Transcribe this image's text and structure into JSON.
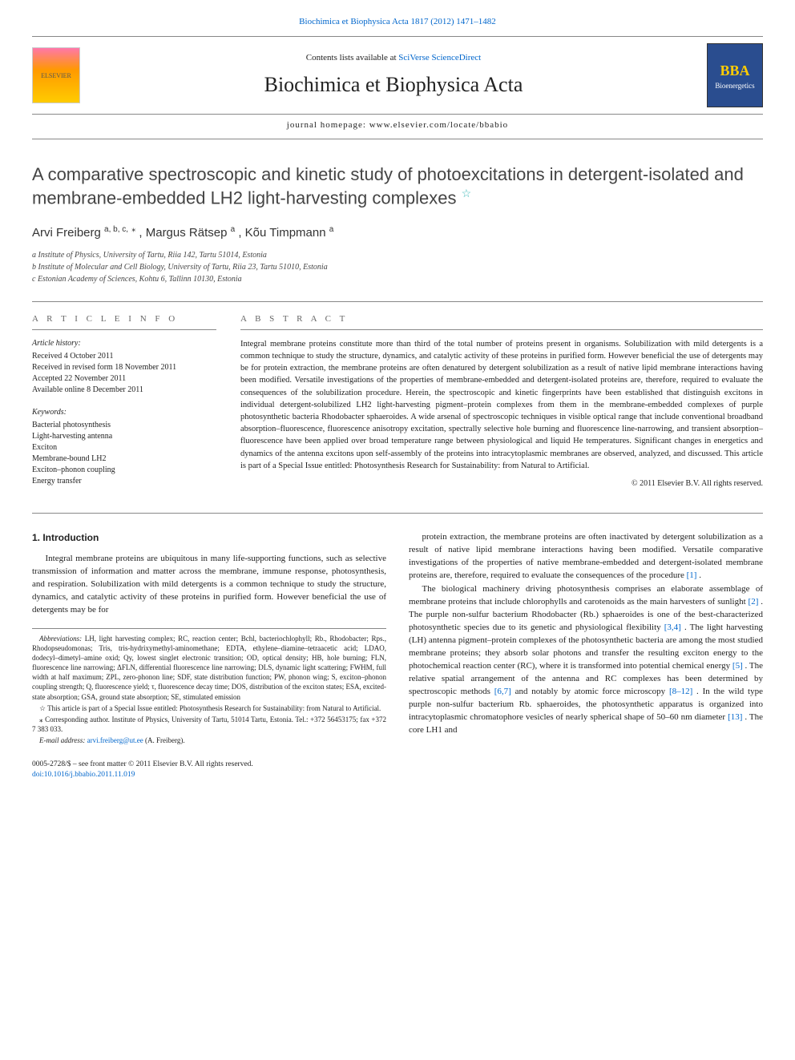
{
  "header": {
    "top_link_prefix": "Biochimica et Biophysica Acta 1817 (2012) 1471–1482",
    "contents_line_prefix": "Contents lists available at ",
    "contents_link": "SciVerse ScienceDirect",
    "journal_name": "Biochimica et Biophysica Acta",
    "homepage_prefix": "journal homepage: ",
    "homepage_url": "www.elsevier.com/locate/bbabio",
    "elsevier_label": "ELSEVIER",
    "bba_label_top": "BBA",
    "bba_label_bottom": "Bioenergetics"
  },
  "article": {
    "title": "A comparative spectroscopic and kinetic study of photoexcitations in detergent-isolated and membrane-embedded LH2 light-harvesting complexes",
    "title_star": "☆",
    "authors_html": "Arvi Freiberg",
    "author1": "Arvi Freiberg",
    "author1_aff": "a, b, c,",
    "author1_corr": "⁎",
    "author2": ", Margus Rätsep",
    "author2_aff": "a",
    "author3": ", Kõu Timpmann",
    "author3_aff": "a",
    "affiliations": {
      "a": "a Institute of Physics, University of Tartu, Riia 142, Tartu 51014, Estonia",
      "b": "b Institute of Molecular and Cell Biology, University of Tartu, Riia 23, Tartu 51010, Estonia",
      "c": "c Estonian Academy of Sciences, Kohtu 6, Tallinn 10130, Estonia"
    }
  },
  "info": {
    "label": "A R T I C L E   I N F O",
    "history_label": "Article history:",
    "received": "Received 4 October 2011",
    "revised": "Received in revised form 18 November 2011",
    "accepted": "Accepted 22 November 2011",
    "online": "Available online 8 December 2011",
    "keywords_label": "Keywords:",
    "kw1": "Bacterial photosynthesis",
    "kw2": "Light-harvesting antenna",
    "kw3": "Exciton",
    "kw4": "Membrane-bound LH2",
    "kw5": "Exciton–phonon coupling",
    "kw6": "Energy transfer"
  },
  "abstract": {
    "label": "A B S T R A C T",
    "text": "Integral membrane proteins constitute more than third of the total number of proteins present in organisms. Solubilization with mild detergents is a common technique to study the structure, dynamics, and catalytic activity of these proteins in purified form. However beneficial the use of detergents may be for protein extraction, the membrane proteins are often denatured by detergent solubilization as a result of native lipid membrane interactions having been modified. Versatile investigations of the properties of membrane-embedded and detergent-isolated proteins are, therefore, required to evaluate the consequences of the solubilization procedure. Herein, the spectroscopic and kinetic fingerprints have been established that distinguish excitons in individual detergent-solubilized LH2 light-harvesting pigment–protein complexes from them in the membrane-embedded complexes of purple photosynthetic bacteria Rhodobacter sphaeroides. A wide arsenal of spectroscopic techniques in visible optical range that include conventional broadband absorption–fluorescence, fluorescence anisotropy excitation, spectrally selective hole burning and fluorescence line-narrowing, and transient absorption–fluorescence have been applied over broad temperature range between physiological and liquid He temperatures. Significant changes in energetics and dynamics of the antenna excitons upon self-assembly of the proteins into intracytoplasmic membranes are observed, analyzed, and discussed. This article is part of a Special Issue entitled: Photosynthesis Research for Sustainability: from Natural to Artificial.",
    "copyright": "© 2011 Elsevier B.V. All rights reserved."
  },
  "body": {
    "section1_heading": "1. Introduction",
    "p1": "Integral membrane proteins are ubiquitous in many life-supporting functions, such as selective transmission of information and matter across the membrane, immune response, photosynthesis, and respiration. Solubilization with mild detergents is a common technique to study the structure, dynamics, and catalytic activity of these proteins in purified form. However beneficial the use of detergents may be for",
    "p2a": "protein extraction, the membrane proteins are often inactivated by detergent solubilization as a result of native lipid membrane interactions having been modified. Versatile comparative investigations of the properties of native membrane-embedded and detergent-isolated membrane proteins are, therefore, required to evaluate the consequences of the procedure ",
    "p2_ref1": "[1]",
    "p2b": ".",
    "p3a": "The biological machinery driving photosynthesis comprises an elaborate assemblage of membrane proteins that include chlorophylls and carotenoids as the main harvesters of sunlight ",
    "p3_ref1": "[2]",
    "p3b": ". The purple non-sulfur bacterium Rhodobacter (Rb.) sphaeroides is one of the best-characterized photosynthetic species due to its genetic and physiological flexibility ",
    "p3_ref2": "[3,4]",
    "p3c": ". The light harvesting (LH) antenna pigment–protein complexes of the photosynthetic bacteria are among the most studied membrane proteins; they absorb solar photons and transfer the resulting exciton energy to the photochemical reaction center (RC), where it is transformed into potential chemical energy ",
    "p3_ref3": "[5]",
    "p3d": ". The relative spatial arrangement of the antenna and RC complexes has been determined by spectroscopic methods ",
    "p3_ref4": "[6,7]",
    "p3e": " and notably by atomic force microscopy ",
    "p3_ref5": "[8–12]",
    "p3f": ". In the wild type purple non-sulfur bacterium Rb. sphaeroides, the photosynthetic apparatus is organized into intracytoplasmic chromatophore vesicles of nearly spherical shape of 50–60 nm diameter ",
    "p3_ref6": "[13]",
    "p3g": ". The core LH1 and"
  },
  "footnotes": {
    "abbrev_label": "Abbreviations:",
    "abbrev_text": " LH, light harvesting complex; RC, reaction center; Bchl, bacteriochlophyll; Rb., Rhodobacter; Rps., Rhodopseudomonas; Tris, tris-hydrixymethyl-aminomethane; EDTA, ethylene–diamine–tetraacetic acid; LDAO, dodecyl–dimetyl–amine oxid; Qy, lowest singlet electronic transition; OD, optical density; HB, hole burning; FLN, fluorescence line narrowing; ΔFLN, differential fluorescence line narrowing; DLS, dynamic light scattering; FWHM, full width at half maximum; ZPL, zero-phonon line; SDF, state distribution function; PW, phonon wing; S, exciton–phonon coupling strength; Q, fluorescence yield; τ, fluorescence decay time; DOS, distribution of the exciton states; ESA, excited-state absorption; GSA, ground state absorption; SE, stimulated emission",
    "star_note": "☆ This article is part of a Special Issue entitled: Photosynthesis Research for Sustainability: from Natural to Artificial.",
    "corr_note": "⁎ Corresponding author. Institute of Physics, University of Tartu, 51014 Tartu, Estonia. Tel.: +372 56453175; fax +372 7 383 033.",
    "email_label": "E-mail address:",
    "email": " arvi.freiberg@ut.ee",
    "email_suffix": " (A. Freiberg)."
  },
  "footer": {
    "line1": "0005-2728/$ – see front matter © 2011 Elsevier B.V. All rights reserved.",
    "line2": "doi:10.1016/j.bbabio.2011.11.019"
  },
  "colors": {
    "link": "#0066cc",
    "rule": "#888888",
    "text": "#222222"
  }
}
